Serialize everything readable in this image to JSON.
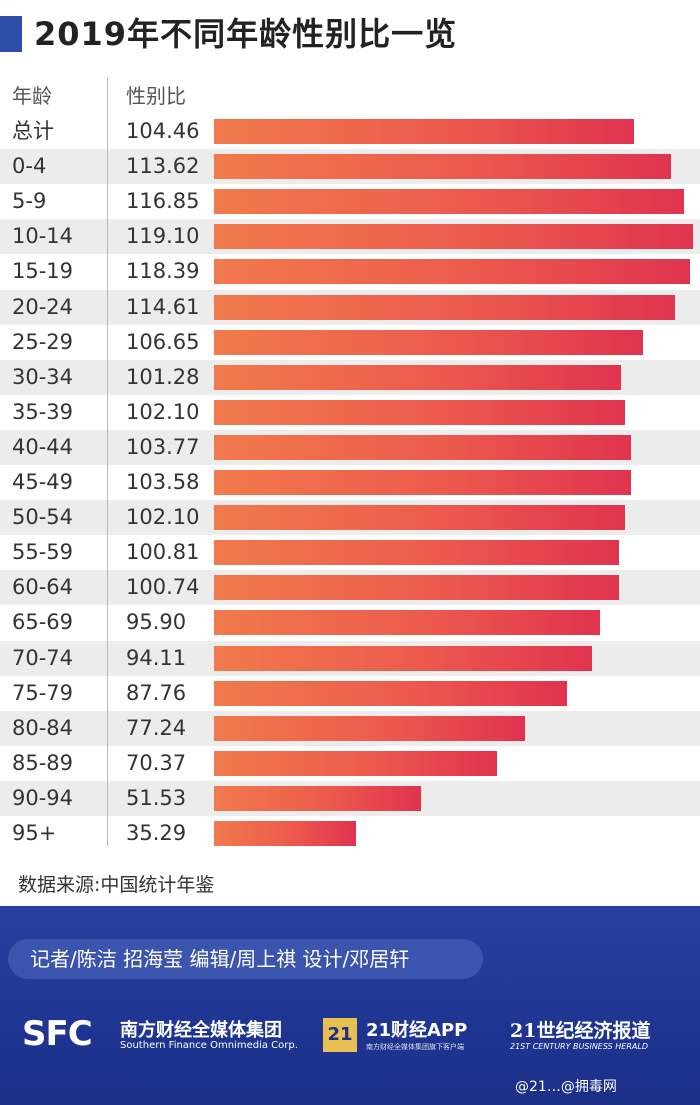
{
  "title": "2019年不同年龄性别比一览",
  "header": {
    "age": "年龄",
    "ratio": "性别比"
  },
  "source": "数据来源:中国统计年鉴",
  "credit": "记者/陈洁  招海莹  编辑/周上祺  设计/邓居轩",
  "logos": {
    "sfc": "SFC",
    "sfc_cn": "南方财经全媒体集团",
    "sfc_en": "Southern Finance Omnimedia Corp.",
    "app_badge": "21",
    "app_cn": "21财经APP",
    "app_sub": "南方财经全媒体集团旗下客户端",
    "herald_cn": "21世纪经济报道",
    "herald_en": "21ST CENTURY BUSINESS HERALD"
  },
  "watermark": "@21…@拥毒网",
  "colors": {
    "accent": "#2f4da8",
    "bar_start": "#f17a4c",
    "bar_end": "#e0334f",
    "banner": "#1f3592"
  },
  "chart_data": {
    "type": "bar",
    "orientation": "horizontal",
    "title": "2019年不同年龄性别比一览",
    "xlabel": "性别比",
    "ylabel": "年龄",
    "categories": [
      "总计",
      "0-4",
      "5-9",
      "10-14",
      "15-19",
      "20-24",
      "25-29",
      "30-34",
      "35-39",
      "40-44",
      "45-49",
      "50-54",
      "55-59",
      "60-64",
      "65-69",
      "70-74",
      "75-79",
      "80-84",
      "85-89",
      "90-94",
      "95+"
    ],
    "labels": [
      "104.46",
      "113.62",
      "116.85",
      "119.10",
      "118.39",
      "114.61",
      "106.65",
      "101.28",
      "102.10",
      "103.77",
      "103.58",
      "102.10",
      "100.81",
      "100.74",
      "95.90",
      "94.11",
      "87.76",
      "77.24",
      "70.37",
      "51.53",
      "35.29"
    ],
    "values": [
      104.46,
      113.62,
      116.85,
      119.1,
      118.39,
      114.61,
      106.65,
      101.28,
      102.1,
      103.77,
      103.58,
      102.1,
      100.81,
      100.74,
      95.9,
      94.11,
      87.76,
      77.24,
      70.37,
      51.53,
      35.29
    ],
    "xlim": [
      0,
      119.1
    ]
  }
}
